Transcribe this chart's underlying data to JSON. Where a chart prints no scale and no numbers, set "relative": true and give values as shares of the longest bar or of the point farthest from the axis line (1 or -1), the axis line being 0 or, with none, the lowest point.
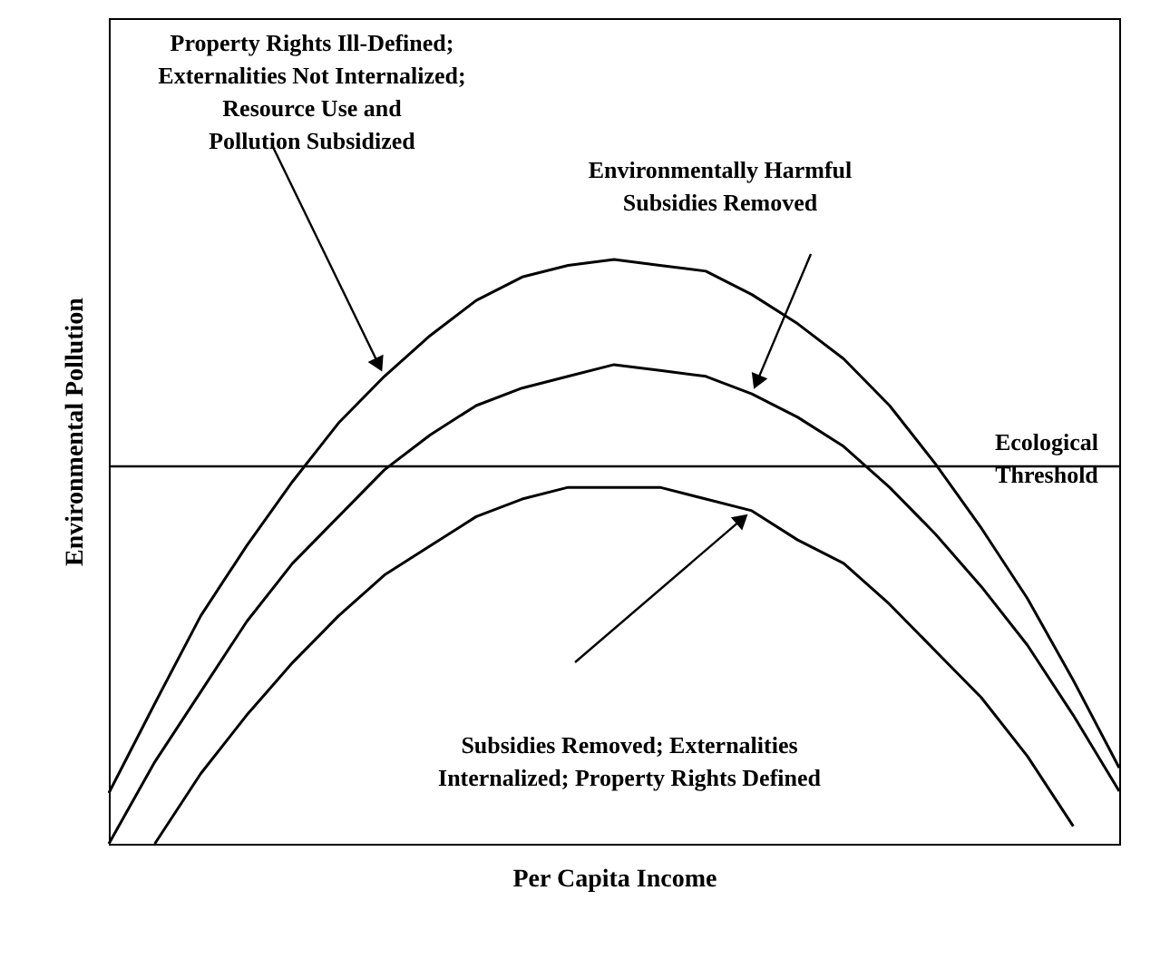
{
  "chart_data": {
    "type": "line",
    "relative": true,
    "xlabel": "Per Capita Income",
    "ylabel": "Environmental Pollution",
    "categories": [
      null,
      null,
      null,
      null,
      null,
      null,
      null,
      null,
      null,
      null,
      null,
      null,
      null,
      null,
      null,
      null,
      null,
      null,
      null,
      null,
      null,
      null,
      null
    ],
    "series": [
      {
        "color": "#000000",
        "values": [
          0.087,
          0.24,
          0.39,
          0.51,
          0.62,
          0.72,
          0.8,
          0.87,
          0.93,
          0.97,
          0.99,
          1,
          0.99,
          0.98,
          0.94,
          0.89,
          0.83,
          0.75,
          0.65,
          0.54,
          0.42,
          0.28,
          0.13
        ]
      },
      {
        "color": "#000000",
        "values": [
          0,
          0.14,
          0.26,
          0.38,
          0.48,
          0.56,
          0.64,
          0.7,
          0.75,
          0.78,
          0.8,
          0.82,
          0.81,
          0.8,
          0.77,
          0.73,
          0.68,
          0.61,
          0.53,
          0.44,
          0.34,
          0.22,
          0.09
        ]
      },
      {
        "color": "#000000",
        "values": [
          null,
          0,
          0.12,
          0.22,
          0.31,
          0.39,
          0.46,
          0.51,
          0.56,
          0.59,
          0.61,
          0.61,
          0.61,
          0.59,
          0.57,
          0.52,
          0.48,
          0.41,
          0.33,
          0.25,
          0.15,
          0.03,
          null
        ]
      }
    ],
    "ref_lines": [
      {
        "axis": "y",
        "value": 0.646,
        "label": "Ecological\nThreshold",
        "color": "#000000"
      }
    ],
    "annotations": [
      "Property Rights Ill-Defined;\nExternalities Not Internalized;\nResource Use and\nPollution Subsidized",
      "Environmentally Harmful\nSubsidies Removed",
      "Subsidies Removed; Externalities\nInternalized; Property Rights Defined"
    ],
    "grid": false,
    "marker": "none",
    "line_style": "solid"
  }
}
